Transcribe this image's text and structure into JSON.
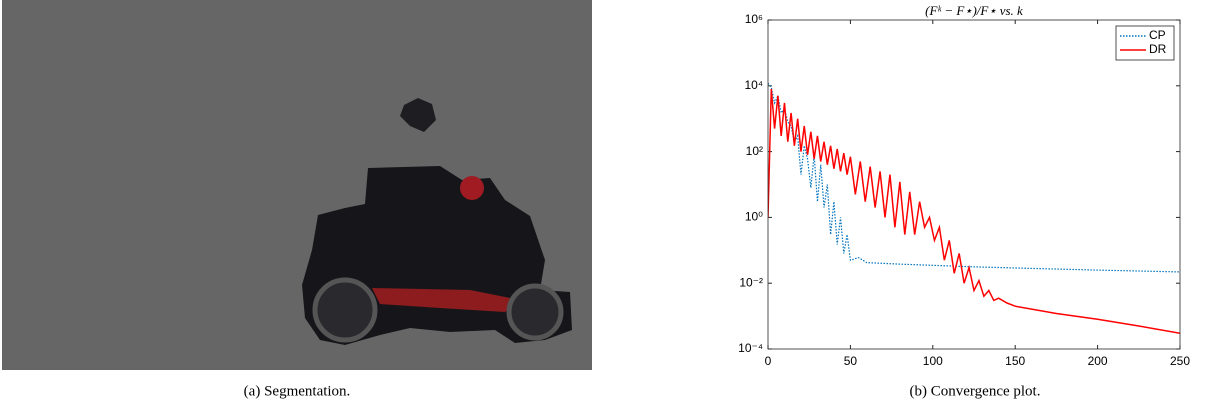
{
  "captions": {
    "left": "(a) Segmentation.",
    "right": "(b) Convergence plot."
  },
  "chart_data": {
    "type": "line",
    "title": "(Fᵏ − F⋆)/F⋆ vs. k",
    "xlim": [
      0,
      250
    ],
    "xticks": [
      0,
      50,
      100,
      150,
      200,
      250
    ],
    "ylim": [
      0.0001,
      1000000
    ],
    "yscale": "log",
    "yticks": [
      {
        "value": 0.0001,
        "label": "10⁻⁴"
      },
      {
        "value": 0.01,
        "label": "10⁻²"
      },
      {
        "value": 1,
        "label": "10⁰"
      },
      {
        "value": 100,
        "label": "10²"
      },
      {
        "value": 10000,
        "label": "10⁴"
      },
      {
        "value": 1000000,
        "label": "10⁶"
      }
    ],
    "legend": "top-right",
    "series": [
      {
        "name": "CP",
        "color": "#0072bd",
        "style": "dotted",
        "x": [
          0,
          2,
          4,
          6,
          8,
          10,
          12,
          14,
          16,
          18,
          20,
          22,
          24,
          26,
          28,
          30,
          32,
          34,
          36,
          38,
          40,
          42,
          44,
          46,
          48,
          50,
          55,
          60,
          70,
          80,
          100,
          120,
          150,
          200,
          250
        ],
        "values": [
          12000,
          9000,
          3000,
          5000,
          1500,
          2000,
          800,
          600,
          200,
          300,
          20,
          150,
          60,
          8,
          80,
          3,
          40,
          2,
          10,
          0.3,
          3,
          0.15,
          1,
          0.08,
          0.3,
          0.05,
          0.06,
          0.042,
          0.04,
          0.038,
          0.035,
          0.032,
          0.029,
          0.025,
          0.022
        ]
      },
      {
        "name": "DR",
        "color": "#ff0000",
        "style": "solid",
        "x": [
          0,
          2,
          4,
          6,
          8,
          10,
          12,
          14,
          16,
          18,
          20,
          22,
          24,
          26,
          28,
          30,
          32,
          34,
          36,
          38,
          40,
          42,
          44,
          46,
          48,
          50,
          53,
          56,
          59,
          62,
          65,
          68,
          71,
          74,
          77,
          80,
          83,
          86,
          89,
          92,
          95,
          98,
          101,
          104,
          107,
          110,
          113,
          116,
          119,
          122,
          125,
          128,
          131,
          134,
          137,
          140,
          145,
          150,
          175,
          200,
          225,
          250
        ],
        "values": [
          1,
          8000,
          500,
          5000,
          300,
          3000,
          200,
          1500,
          150,
          1000,
          100,
          600,
          80,
          400,
          60,
          300,
          50,
          200,
          40,
          150,
          30,
          120,
          25,
          90,
          20,
          70,
          5,
          50,
          3,
          35,
          2,
          25,
          1,
          20,
          0.5,
          12,
          0.3,
          6,
          0.3,
          3,
          0.5,
          1,
          0.2,
          0.5,
          0.05,
          0.2,
          0.02,
          0.08,
          0.01,
          0.03,
          0.006,
          0.012,
          0.004,
          0.006,
          0.003,
          0.0035,
          0.0025,
          0.002,
          0.0012,
          0.0008,
          0.0005,
          0.0003
        ]
      }
    ]
  }
}
